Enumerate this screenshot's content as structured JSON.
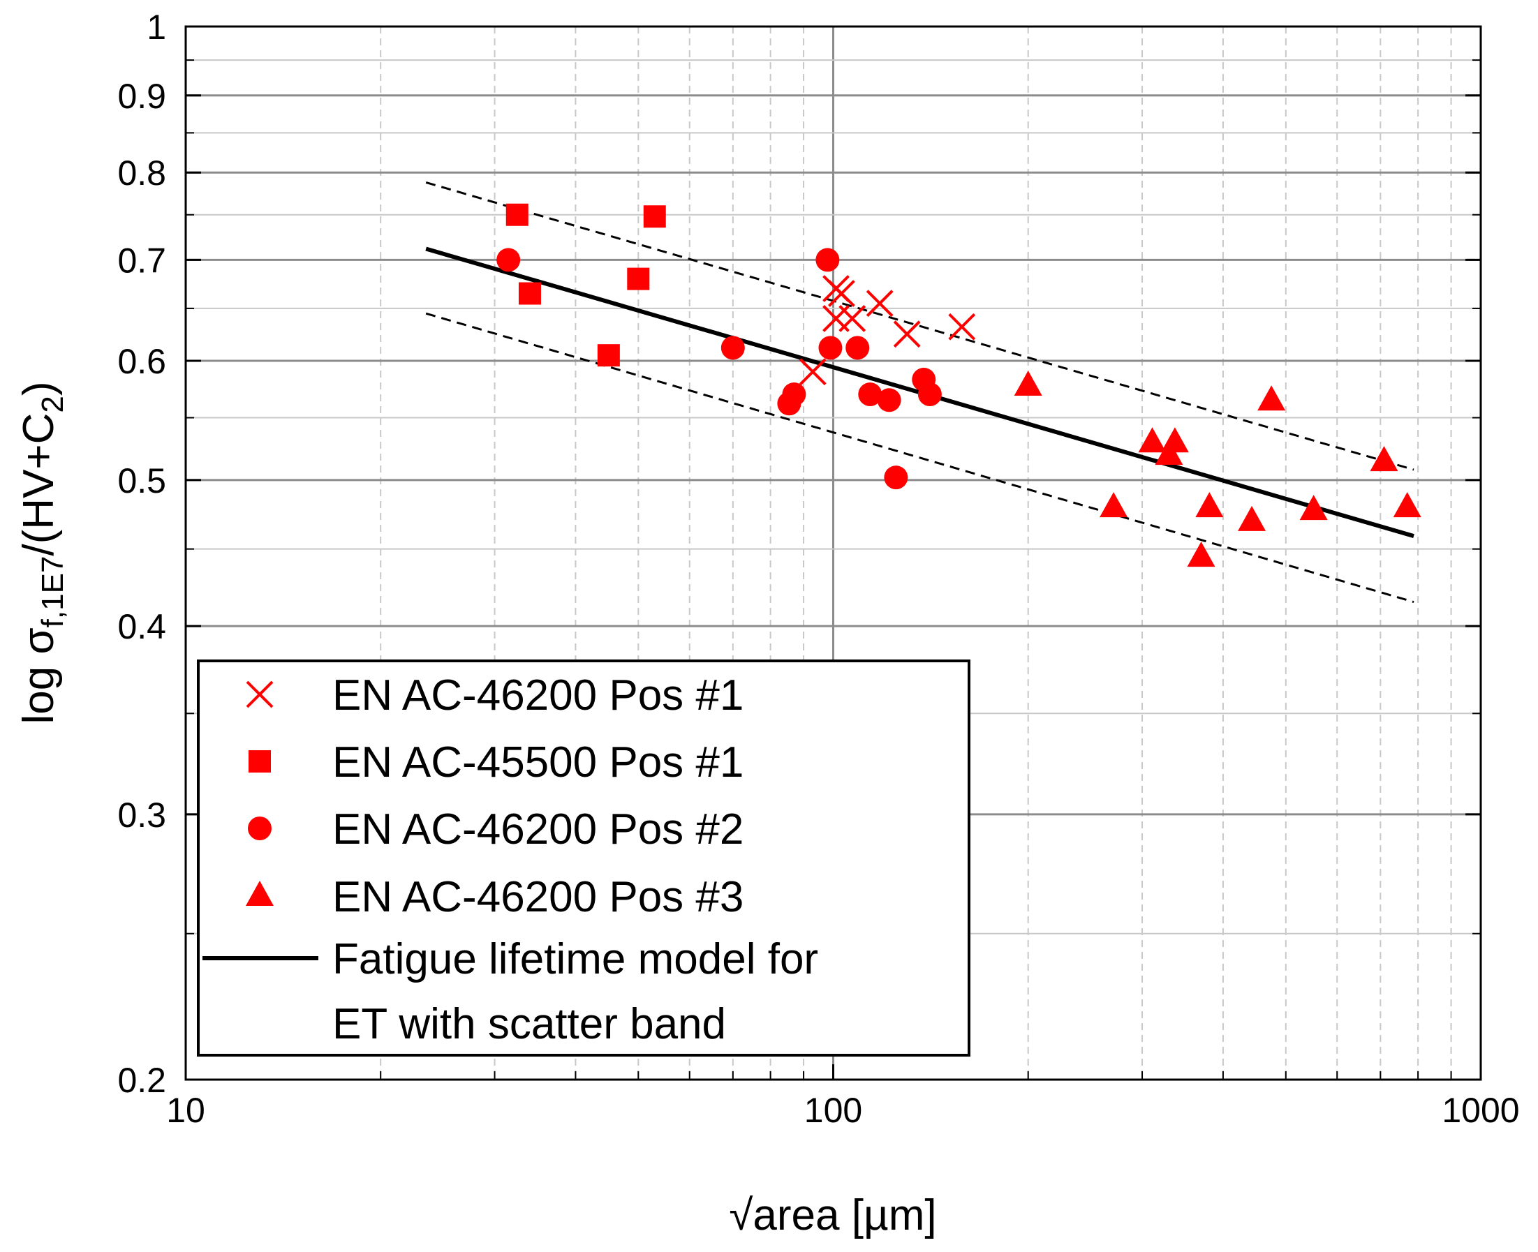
{
  "chart_data": {
    "type": "scatter",
    "title": "",
    "xlabel": "√area [µm]",
    "ylabel": {
      "prefix": "log σ",
      "sub1": "f,1E7",
      "mid": "/(HV+C",
      "sub2": "2",
      "suffix": ")"
    },
    "xscale": "log",
    "yscale": "log",
    "xlim": [
      10,
      1000
    ],
    "ylim": [
      0.2,
      1.0
    ],
    "grid": true,
    "x_tick_labels": [
      "10",
      "100",
      "1000"
    ],
    "y_tick_labels": [
      "0.2",
      "0.3",
      "0.4",
      "0.5",
      "0.6",
      "0.7",
      "0.8",
      "0.9",
      "1"
    ],
    "legend_position": "bottom-left",
    "series": [
      {
        "name": "EN AC-46200 Pos #1",
        "marker": "x",
        "color": "#ff0000",
        "points": [
          [
            93,
            0.59
          ],
          [
            101,
            0.67
          ],
          [
            101,
            0.64
          ],
          [
            103,
            0.665
          ],
          [
            107,
            0.64
          ],
          [
            118,
            0.655
          ],
          [
            130,
            0.625
          ],
          [
            158,
            0.632
          ]
        ]
      },
      {
        "name": "EN AC-45500 Pos #1",
        "marker": "square",
        "color": "#ff0000",
        "points": [
          [
            32.5,
            0.75
          ],
          [
            34,
            0.665
          ],
          [
            45,
            0.605
          ],
          [
            50,
            0.68
          ],
          [
            53,
            0.748
          ]
        ]
      },
      {
        "name": "EN AC-46200 Pos #2",
        "marker": "circle",
        "color": "#ff0000",
        "points": [
          [
            31.5,
            0.7
          ],
          [
            70,
            0.612
          ],
          [
            85.5,
            0.562
          ],
          [
            87,
            0.57
          ],
          [
            98,
            0.7
          ],
          [
            99,
            0.612
          ],
          [
            109,
            0.612
          ],
          [
            114,
            0.57
          ],
          [
            122,
            0.565
          ],
          [
            125,
            0.502
          ],
          [
            138,
            0.583
          ],
          [
            141,
            0.57
          ]
        ]
      },
      {
        "name": "EN AC-46200 Pos #3",
        "marker": "triangle",
        "color": "#ff0000",
        "points": [
          [
            200,
            0.578
          ],
          [
            271,
            0.48
          ],
          [
            311,
            0.53
          ],
          [
            330,
            0.52
          ],
          [
            337,
            0.53
          ],
          [
            370,
            0.445
          ],
          [
            381,
            0.48
          ],
          [
            443,
            0.47
          ],
          [
            475,
            0.565
          ],
          [
            552,
            0.478
          ],
          [
            709,
            0.515
          ],
          [
            770,
            0.48
          ]
        ]
      }
    ],
    "model": {
      "name": "Fatigue lifetime model for ET with scatter band",
      "legend_lines": [
        "Fatigue lifetime model for",
        "ET with scatter band"
      ],
      "color": "#000000",
      "mean_line": [
        [
          23.5,
          0.712
        ],
        [
          788,
          0.459
        ]
      ],
      "upper_band": [
        [
          23.5,
          0.788
        ],
        [
          788,
          0.508
        ]
      ],
      "lower_band": [
        [
          23.5,
          0.645
        ],
        [
          788,
          0.415
        ]
      ]
    }
  }
}
